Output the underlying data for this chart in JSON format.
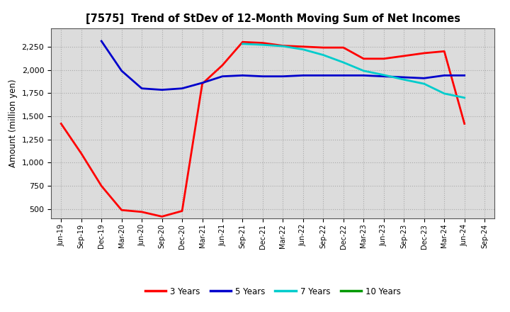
{
  "title": "[7575]  Trend of StDev of 12-Month Moving Sum of Net Incomes",
  "ylabel": "Amount (million yen)",
  "background_color": "#ffffff",
  "plot_bg_color": "#dcdcdc",
  "grid_color": "#aaaaaa",
  "x_labels": [
    "Jun-19",
    "Sep-19",
    "Dec-19",
    "Mar-20",
    "Jun-20",
    "Sep-20",
    "Dec-20",
    "Mar-21",
    "Jun-21",
    "Sep-21",
    "Dec-21",
    "Mar-22",
    "Jun-22",
    "Sep-22",
    "Dec-22",
    "Mar-23",
    "Jun-23",
    "Sep-23",
    "Dec-23",
    "Mar-24",
    "Jun-24",
    "Sep-24"
  ],
  "series": {
    "3 Years": {
      "color": "#ff0000",
      "linewidth": 2.0,
      "data_y": [
        1420,
        1100,
        750,
        490,
        470,
        420,
        480,
        1850,
        2050,
        2300,
        2290,
        2260,
        2250,
        2240,
        2240,
        2120,
        2120,
        2150,
        2180,
        2200,
        1420,
        null
      ]
    },
    "5 Years": {
      "color": "#0000cc",
      "linewidth": 2.0,
      "data_y": [
        null,
        null,
        2310,
        1990,
        1800,
        1785,
        1800,
        1860,
        1930,
        1940,
        1930,
        1930,
        1940,
        1940,
        1940,
        1940,
        1930,
        1920,
        1910,
        1940,
        1940,
        null
      ]
    },
    "7 Years": {
      "color": "#00cccc",
      "linewidth": 2.0,
      "data_y": [
        null,
        null,
        null,
        null,
        null,
        null,
        null,
        null,
        null,
        2280,
        2270,
        2255,
        2220,
        2160,
        2080,
        1990,
        1945,
        1895,
        1850,
        1745,
        1700,
        null
      ]
    },
    "10 Years": {
      "color": "#009900",
      "linewidth": 2.0,
      "data_y": [
        null,
        null,
        null,
        null,
        null,
        null,
        null,
        null,
        null,
        null,
        null,
        null,
        null,
        null,
        null,
        null,
        null,
        null,
        null,
        null,
        null,
        null
      ]
    }
  },
  "ylim": [
    400,
    2450
  ],
  "yticks": [
    500,
    750,
    1000,
    1250,
    1500,
    1750,
    2000,
    2250
  ],
  "legend_entries": [
    "3 Years",
    "5 Years",
    "7 Years",
    "10 Years"
  ],
  "legend_colors": [
    "#ff0000",
    "#0000cc",
    "#00cccc",
    "#009900"
  ]
}
